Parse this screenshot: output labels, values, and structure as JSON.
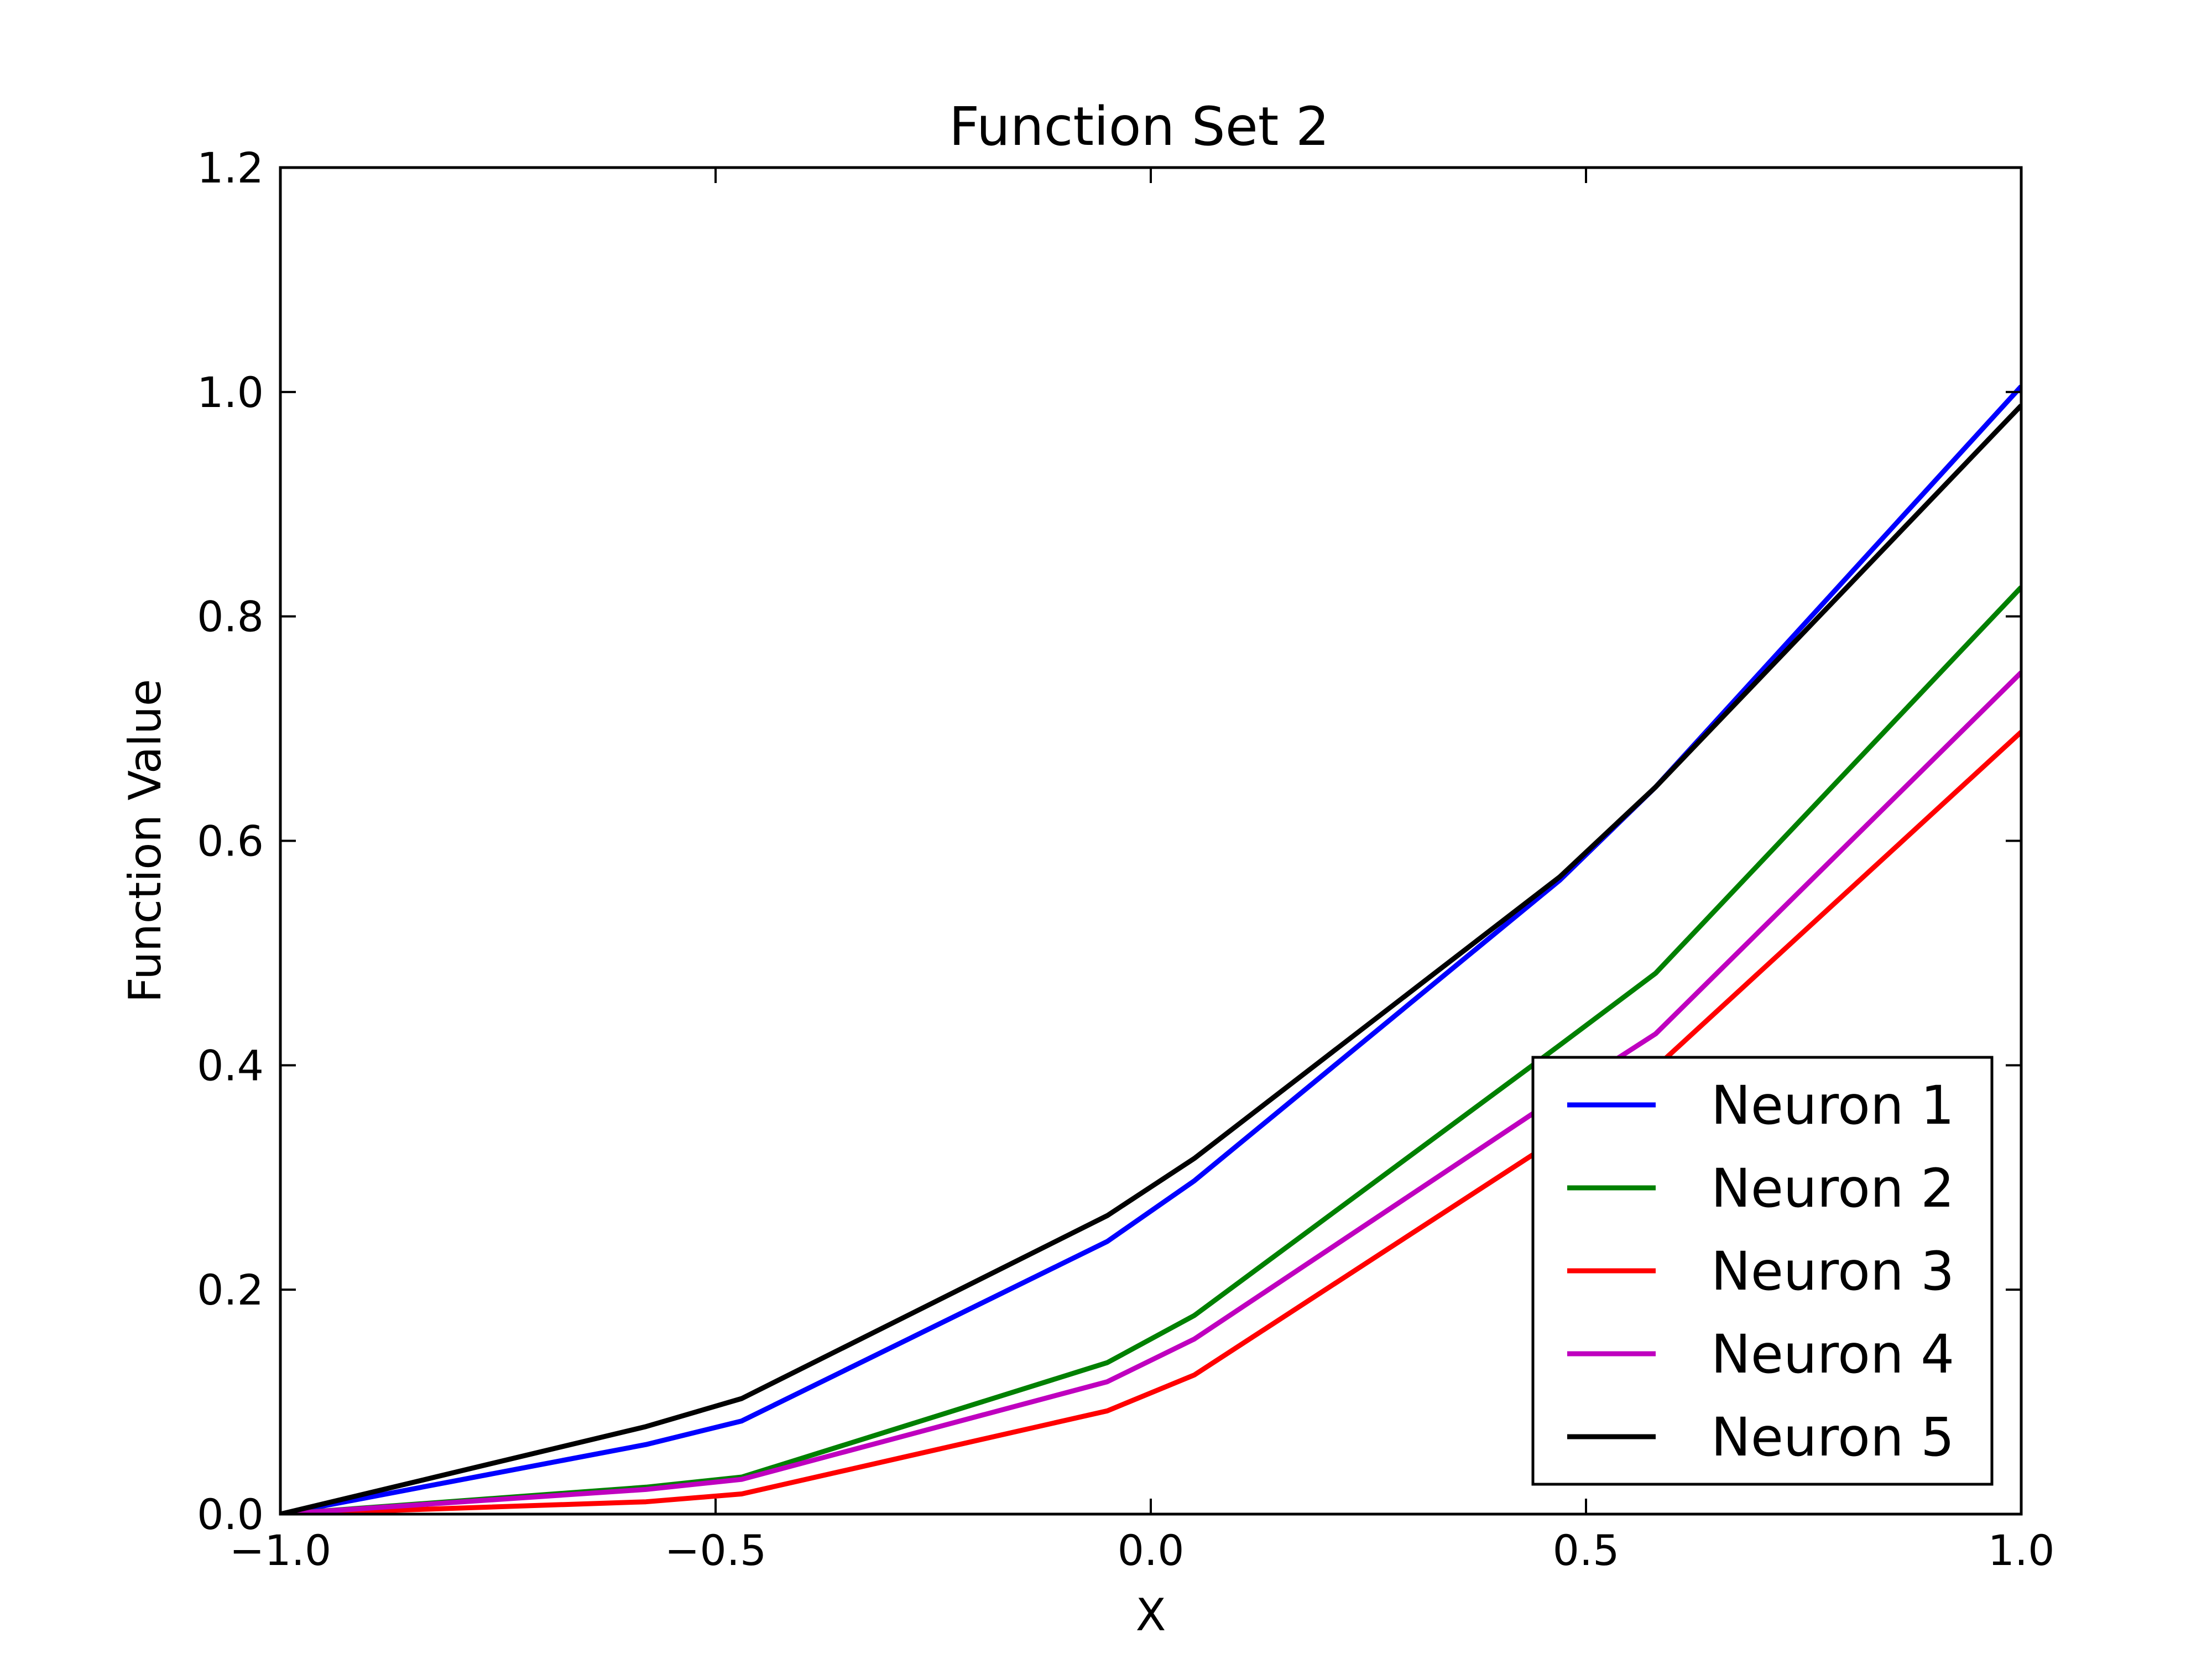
{
  "chart_data": {
    "type": "line",
    "title": "Function Set 2",
    "xlabel": "X",
    "ylabel": "Function Value",
    "xlim": [
      -1.0,
      1.0
    ],
    "ylim": [
      0.0,
      1.2
    ],
    "xticks": [
      "−1.0",
      "−0.5",
      "0.0",
      "0.5",
      "1.0"
    ],
    "xtick_values": [
      -1.0,
      -0.5,
      0.0,
      0.5,
      1.0
    ],
    "yticks": [
      "0.0",
      "0.2",
      "0.4",
      "0.6",
      "0.8",
      "1.0",
      "1.2"
    ],
    "ytick_values": [
      0.0,
      0.2,
      0.4,
      0.6,
      0.8,
      1.0,
      1.2
    ],
    "grid": false,
    "legend_position": "lower-right",
    "x": [
      -1.0,
      -0.58,
      -0.47,
      -0.05,
      0.05,
      0.47,
      0.58,
      1.0
    ],
    "series": [
      {
        "name": "Neuron 1",
        "color": "#0000ff",
        "values": [
          0.0,
          0.062,
          0.083,
          0.243,
          0.297,
          0.565,
          0.648,
          1.005
        ]
      },
      {
        "name": "Neuron 2",
        "color": "#008000",
        "values": [
          0.0,
          0.024,
          0.033,
          0.135,
          0.177,
          0.418,
          0.482,
          0.826
        ]
      },
      {
        "name": "Neuron 3",
        "color": "#ff0000",
        "values": [
          0.0,
          0.011,
          0.018,
          0.092,
          0.124,
          0.336,
          0.398,
          0.697
        ]
      },
      {
        "name": "Neuron 4",
        "color": "#bf00bf",
        "values": [
          0.0,
          0.022,
          0.031,
          0.118,
          0.156,
          0.373,
          0.428,
          0.75
        ]
      },
      {
        "name": "Neuron 5",
        "color": "#000000",
        "values": [
          0.0,
          0.078,
          0.103,
          0.266,
          0.317,
          0.568,
          0.648,
          0.988
        ]
      }
    ]
  }
}
